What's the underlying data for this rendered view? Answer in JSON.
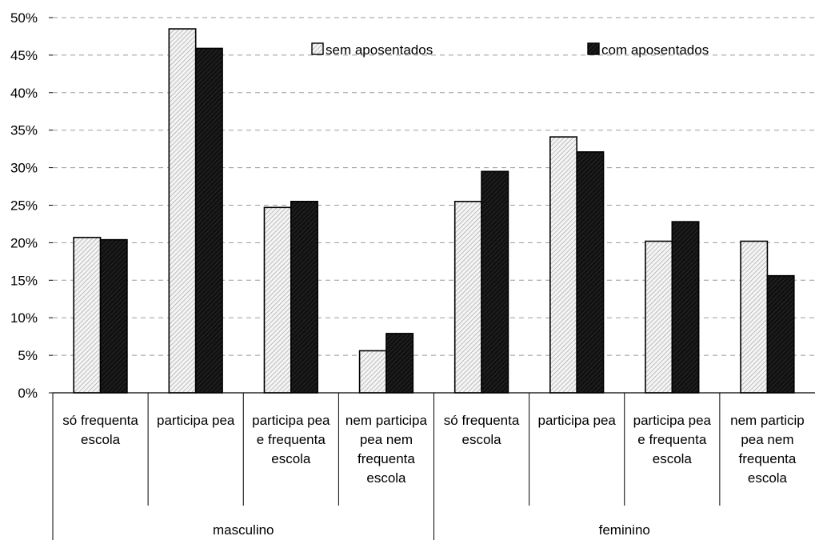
{
  "chart_data": {
    "type": "bar",
    "title": "",
    "xlabel": "",
    "ylabel": "",
    "ylim": [
      0,
      0.5
    ],
    "yticks": [
      "0%",
      "5%",
      "10%",
      "15%",
      "20%",
      "25%",
      "30%",
      "35%",
      "40%",
      "45%",
      "50%"
    ],
    "grid": "horizontal dashed",
    "legend_position": "top",
    "groups": [
      {
        "label": "masculino",
        "categories": [
          [
            "só frequenta",
            "escola"
          ],
          [
            "participa pea"
          ],
          [
            "participa pea",
            "e frequenta",
            "escola"
          ],
          [
            "nem participa",
            "pea nem",
            "frequenta",
            "escola"
          ]
        ]
      },
      {
        "label": "feminino",
        "categories": [
          [
            "só frequenta",
            "escola"
          ],
          [
            "participa pea"
          ],
          [
            "participa pea",
            "e frequenta",
            "escola"
          ],
          [
            "nem particip",
            "pea nem",
            "frequenta",
            "escola"
          ]
        ]
      }
    ],
    "series": [
      {
        "name": "sem aposentados",
        "color": "#e8e8e8",
        "pattern": "light-diagonal-hatch",
        "values": [
          0.207,
          0.485,
          0.247,
          0.056,
          0.255,
          0.341,
          0.202,
          0.202
        ]
      },
      {
        "name": "com aposentados",
        "color": "#1a1a1a",
        "pattern": "dark-fill",
        "values": [
          0.204,
          0.459,
          0.255,
          0.079,
          0.295,
          0.321,
          0.228,
          0.156
        ]
      }
    ]
  }
}
